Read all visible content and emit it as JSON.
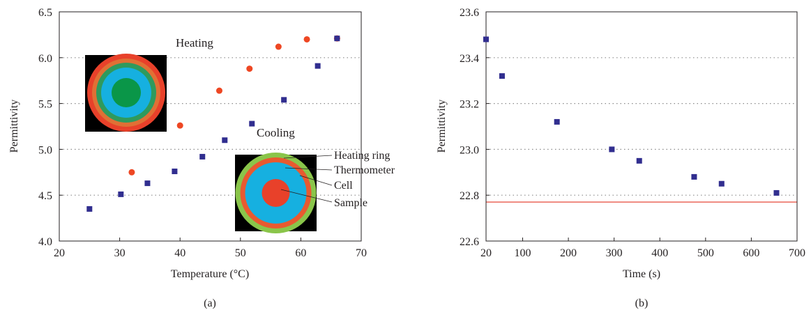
{
  "colors": {
    "heating": "#ee4723",
    "cooling": "#312e8f",
    "reference_line": "#e8594a",
    "axis": "#231f20",
    "grid": "#8a8a8a",
    "inset_background": "#000000"
  },
  "chart_data": [
    {
      "type": "scatter",
      "panel_label": "(a)",
      "xlabel": "Temperature (°C)",
      "ylabel": "Permittivity",
      "xlim": [
        20,
        70
      ],
      "ylim": [
        4.0,
        6.5
      ],
      "xticks": [
        "20",
        "30",
        "40",
        "50",
        "60",
        "70"
      ],
      "yticks": [
        "4.0",
        "4.5",
        "5.0",
        "5.5",
        "6.0",
        "6.5"
      ],
      "grid": "horizontal dotted",
      "series": [
        {
          "name": "Heating",
          "marker": "circle",
          "color": "#ee4723",
          "points": [
            [
              32,
              4.75
            ],
            [
              40,
              5.26
            ],
            [
              46.5,
              5.64
            ],
            [
              51.5,
              5.88
            ],
            [
              56.3,
              6.12
            ],
            [
              61,
              6.2
            ],
            [
              66,
              6.21
            ]
          ]
        },
        {
          "name": "Cooling",
          "marker": "square",
          "color": "#312e8f",
          "points": [
            [
              25,
              4.35
            ],
            [
              30.2,
              4.51
            ],
            [
              34.6,
              4.63
            ],
            [
              39.1,
              4.76
            ],
            [
              43.7,
              4.92
            ],
            [
              47.4,
              5.1
            ],
            [
              51.9,
              5.28
            ],
            [
              57.2,
              5.54
            ],
            [
              62.8,
              5.91
            ],
            [
              66,
              6.21
            ]
          ]
        }
      ],
      "annotations": [
        "Heating ring",
        "Thermometer",
        "Cell",
        "Sample"
      ],
      "insets": [
        {
          "name": "heating-state-thermal-image",
          "rings": [
            "#e8412a",
            "#e07035",
            "#2f9a5d",
            "#16b0e0",
            "#0a9648"
          ]
        },
        {
          "name": "cooling-state-thermal-image",
          "rings": [
            "#8ac54a",
            "#e85a30",
            "#16b0e0",
            "#e8412a"
          ]
        }
      ]
    },
    {
      "type": "scatter",
      "panel_label": "(b)",
      "xlabel": "Time (s)",
      "ylabel": "Permittivity",
      "xlim": [
        20,
        700
      ],
      "ylim": [
        22.6,
        23.6
      ],
      "xticks": [
        "20",
        "100",
        "200",
        "300",
        "400",
        "500",
        "600",
        "700"
      ],
      "yticks": [
        "22.6",
        "22.8",
        "23.0",
        "23.2",
        "23.4",
        "23.6"
      ],
      "grid": "horizontal dotted",
      "series": [
        {
          "marker": "square",
          "color": "#312e8f",
          "points": [
            [
              20,
              23.48
            ],
            [
              55,
              23.32
            ],
            [
              175,
              23.12
            ],
            [
              295,
              23.0
            ],
            [
              355,
              22.95
            ],
            [
              475,
              22.88
            ],
            [
              535,
              22.85
            ],
            [
              655,
              22.81
            ]
          ]
        }
      ],
      "reference_line": {
        "y": 22.77,
        "color": "#e8594a"
      }
    }
  ]
}
